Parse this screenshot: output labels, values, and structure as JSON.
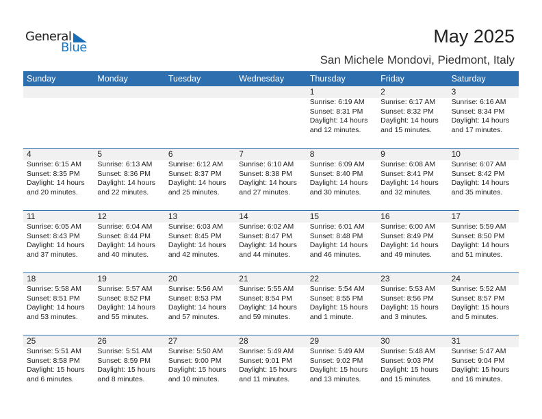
{
  "logo": {
    "line1": "General",
    "line2": "Blue"
  },
  "title": "May 2025",
  "location": "San Michele Mondovi, Piedmont, Italy",
  "weekdays": [
    "Sunday",
    "Monday",
    "Tuesday",
    "Wednesday",
    "Thursday",
    "Friday",
    "Saturday"
  ],
  "colors": {
    "header": "#2e6fb0",
    "band": "#f1f1f1"
  },
  "weeks": [
    [
      null,
      null,
      null,
      null,
      {
        "day": "1",
        "sunrise": "Sunrise: 6:19 AM",
        "sunset": "Sunset: 8:31 PM",
        "daylight1": "Daylight: 14 hours",
        "daylight2": "and 12 minutes."
      },
      {
        "day": "2",
        "sunrise": "Sunrise: 6:17 AM",
        "sunset": "Sunset: 8:32 PM",
        "daylight1": "Daylight: 14 hours",
        "daylight2": "and 15 minutes."
      },
      {
        "day": "3",
        "sunrise": "Sunrise: 6:16 AM",
        "sunset": "Sunset: 8:34 PM",
        "daylight1": "Daylight: 14 hours",
        "daylight2": "and 17 minutes."
      }
    ],
    [
      {
        "day": "4",
        "sunrise": "Sunrise: 6:15 AM",
        "sunset": "Sunset: 8:35 PM",
        "daylight1": "Daylight: 14 hours",
        "daylight2": "and 20 minutes."
      },
      {
        "day": "5",
        "sunrise": "Sunrise: 6:13 AM",
        "sunset": "Sunset: 8:36 PM",
        "daylight1": "Daylight: 14 hours",
        "daylight2": "and 22 minutes."
      },
      {
        "day": "6",
        "sunrise": "Sunrise: 6:12 AM",
        "sunset": "Sunset: 8:37 PM",
        "daylight1": "Daylight: 14 hours",
        "daylight2": "and 25 minutes."
      },
      {
        "day": "7",
        "sunrise": "Sunrise: 6:10 AM",
        "sunset": "Sunset: 8:38 PM",
        "daylight1": "Daylight: 14 hours",
        "daylight2": "and 27 minutes."
      },
      {
        "day": "8",
        "sunrise": "Sunrise: 6:09 AM",
        "sunset": "Sunset: 8:40 PM",
        "daylight1": "Daylight: 14 hours",
        "daylight2": "and 30 minutes."
      },
      {
        "day": "9",
        "sunrise": "Sunrise: 6:08 AM",
        "sunset": "Sunset: 8:41 PM",
        "daylight1": "Daylight: 14 hours",
        "daylight2": "and 32 minutes."
      },
      {
        "day": "10",
        "sunrise": "Sunrise: 6:07 AM",
        "sunset": "Sunset: 8:42 PM",
        "daylight1": "Daylight: 14 hours",
        "daylight2": "and 35 minutes."
      }
    ],
    [
      {
        "day": "11",
        "sunrise": "Sunrise: 6:05 AM",
        "sunset": "Sunset: 8:43 PM",
        "daylight1": "Daylight: 14 hours",
        "daylight2": "and 37 minutes."
      },
      {
        "day": "12",
        "sunrise": "Sunrise: 6:04 AM",
        "sunset": "Sunset: 8:44 PM",
        "daylight1": "Daylight: 14 hours",
        "daylight2": "and 40 minutes."
      },
      {
        "day": "13",
        "sunrise": "Sunrise: 6:03 AM",
        "sunset": "Sunset: 8:45 PM",
        "daylight1": "Daylight: 14 hours",
        "daylight2": "and 42 minutes."
      },
      {
        "day": "14",
        "sunrise": "Sunrise: 6:02 AM",
        "sunset": "Sunset: 8:47 PM",
        "daylight1": "Daylight: 14 hours",
        "daylight2": "and 44 minutes."
      },
      {
        "day": "15",
        "sunrise": "Sunrise: 6:01 AM",
        "sunset": "Sunset: 8:48 PM",
        "daylight1": "Daylight: 14 hours",
        "daylight2": "and 46 minutes."
      },
      {
        "day": "16",
        "sunrise": "Sunrise: 6:00 AM",
        "sunset": "Sunset: 8:49 PM",
        "daylight1": "Daylight: 14 hours",
        "daylight2": "and 49 minutes."
      },
      {
        "day": "17",
        "sunrise": "Sunrise: 5:59 AM",
        "sunset": "Sunset: 8:50 PM",
        "daylight1": "Daylight: 14 hours",
        "daylight2": "and 51 minutes."
      }
    ],
    [
      {
        "day": "18",
        "sunrise": "Sunrise: 5:58 AM",
        "sunset": "Sunset: 8:51 PM",
        "daylight1": "Daylight: 14 hours",
        "daylight2": "and 53 minutes."
      },
      {
        "day": "19",
        "sunrise": "Sunrise: 5:57 AM",
        "sunset": "Sunset: 8:52 PM",
        "daylight1": "Daylight: 14 hours",
        "daylight2": "and 55 minutes."
      },
      {
        "day": "20",
        "sunrise": "Sunrise: 5:56 AM",
        "sunset": "Sunset: 8:53 PM",
        "daylight1": "Daylight: 14 hours",
        "daylight2": "and 57 minutes."
      },
      {
        "day": "21",
        "sunrise": "Sunrise: 5:55 AM",
        "sunset": "Sunset: 8:54 PM",
        "daylight1": "Daylight: 14 hours",
        "daylight2": "and 59 minutes."
      },
      {
        "day": "22",
        "sunrise": "Sunrise: 5:54 AM",
        "sunset": "Sunset: 8:55 PM",
        "daylight1": "Daylight: 15 hours",
        "daylight2": "and 1 minute."
      },
      {
        "day": "23",
        "sunrise": "Sunrise: 5:53 AM",
        "sunset": "Sunset: 8:56 PM",
        "daylight1": "Daylight: 15 hours",
        "daylight2": "and 3 minutes."
      },
      {
        "day": "24",
        "sunrise": "Sunrise: 5:52 AM",
        "sunset": "Sunset: 8:57 PM",
        "daylight1": "Daylight: 15 hours",
        "daylight2": "and 5 minutes."
      }
    ],
    [
      {
        "day": "25",
        "sunrise": "Sunrise: 5:51 AM",
        "sunset": "Sunset: 8:58 PM",
        "daylight1": "Daylight: 15 hours",
        "daylight2": "and 6 minutes."
      },
      {
        "day": "26",
        "sunrise": "Sunrise: 5:51 AM",
        "sunset": "Sunset: 8:59 PM",
        "daylight1": "Daylight: 15 hours",
        "daylight2": "and 8 minutes."
      },
      {
        "day": "27",
        "sunrise": "Sunrise: 5:50 AM",
        "sunset": "Sunset: 9:00 PM",
        "daylight1": "Daylight: 15 hours",
        "daylight2": "and 10 minutes."
      },
      {
        "day": "28",
        "sunrise": "Sunrise: 5:49 AM",
        "sunset": "Sunset: 9:01 PM",
        "daylight1": "Daylight: 15 hours",
        "daylight2": "and 11 minutes."
      },
      {
        "day": "29",
        "sunrise": "Sunrise: 5:49 AM",
        "sunset": "Sunset: 9:02 PM",
        "daylight1": "Daylight: 15 hours",
        "daylight2": "and 13 minutes."
      },
      {
        "day": "30",
        "sunrise": "Sunrise: 5:48 AM",
        "sunset": "Sunset: 9:03 PM",
        "daylight1": "Daylight: 15 hours",
        "daylight2": "and 15 minutes."
      },
      {
        "day": "31",
        "sunrise": "Sunrise: 5:47 AM",
        "sunset": "Sunset: 9:04 PM",
        "daylight1": "Daylight: 15 hours",
        "daylight2": "and 16 minutes."
      }
    ]
  ]
}
